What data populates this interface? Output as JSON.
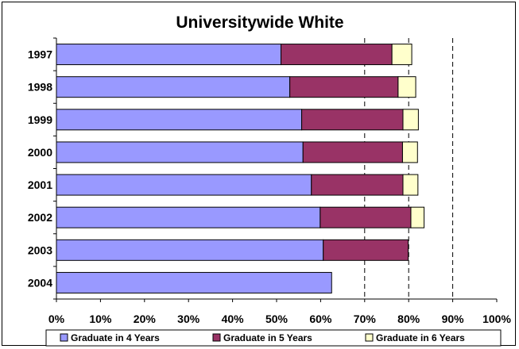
{
  "chart_data": {
    "type": "bar",
    "orientation": "horizontal",
    "stacked": true,
    "title": "Universitywide White",
    "categories": [
      "1997",
      "1998",
      "1999",
      "2000",
      "2001",
      "2002",
      "2003",
      "2004"
    ],
    "series": [
      {
        "name": "Graduate in 4 Years",
        "color": "#9999ff",
        "values": [
          51,
          53,
          55.7,
          56,
          57.9,
          59.9,
          60.6,
          62.5
        ]
      },
      {
        "name": "Graduate in 5 Years",
        "color": "#993366",
        "values": [
          25.2,
          24.6,
          23,
          22.6,
          20.8,
          20.6,
          19.3,
          0
        ]
      },
      {
        "name": "Graduate in 6 Years",
        "color": "#ffffcc",
        "values": [
          4.5,
          4,
          3.5,
          3.4,
          3.4,
          3,
          0,
          0
        ]
      }
    ],
    "xaxis": {
      "ticks": [
        "0%",
        "10%",
        "20%",
        "30%",
        "40%",
        "50%",
        "60%",
        "70%",
        "80%",
        "90%",
        "100%"
      ],
      "range": [
        0,
        100
      ]
    },
    "gridlines": {
      "style": "dashed",
      "at": [
        70,
        80,
        90
      ]
    },
    "legend_position": "bottom"
  }
}
